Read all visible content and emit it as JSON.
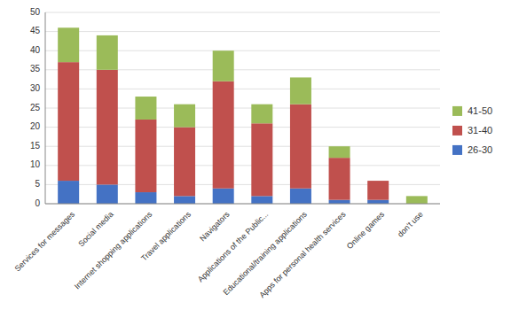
{
  "chart_data": {
    "type": "bar",
    "stacked": true,
    "categories": [
      "Services for messages",
      "Social media",
      "Internet shopping applications",
      "Travel applications",
      "Navigators",
      "Applications of the Public...",
      "Educational/training applications",
      "Apps for personal health services",
      "Online games",
      "don't use"
    ],
    "series": [
      {
        "name": "26-30",
        "color": "#4472C4",
        "values": [
          6,
          5,
          3,
          2,
          4,
          2,
          4,
          1,
          1,
          0
        ]
      },
      {
        "name": "31-40",
        "color": "#C0504D",
        "values": [
          31,
          30,
          19,
          18,
          28,
          19,
          22,
          11,
          5,
          0
        ]
      },
      {
        "name": "41-50",
        "color": "#9BBB59",
        "values": [
          9,
          9,
          6,
          6,
          8,
          5,
          7,
          3,
          0,
          2
        ]
      }
    ],
    "ylim": [
      0,
      50
    ],
    "yticks": [
      0,
      5,
      10,
      15,
      20,
      25,
      30,
      35,
      40,
      45,
      50
    ],
    "grid": true,
    "legend": "right"
  }
}
